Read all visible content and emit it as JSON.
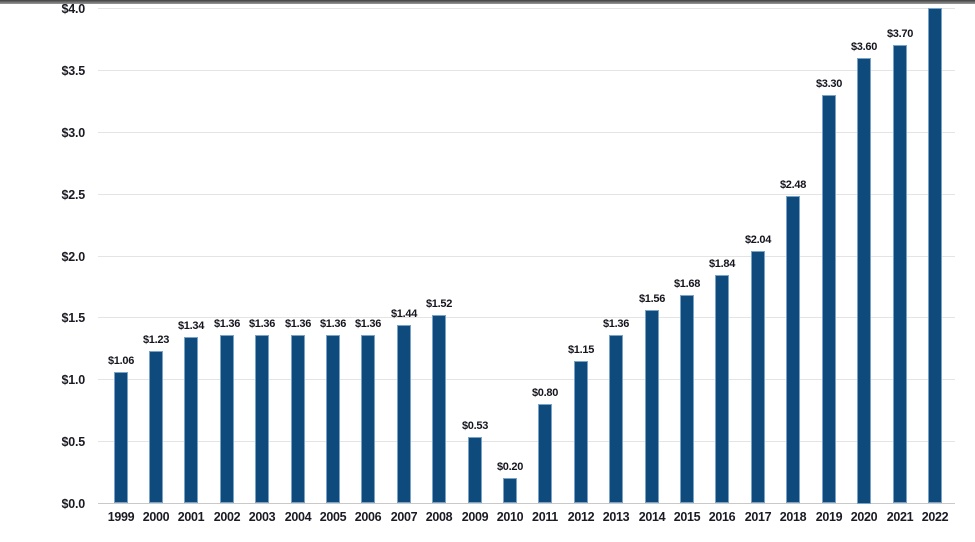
{
  "frame": {
    "top_strip_color_dark": "#3f3f3f",
    "top_strip_color_light": "#9a9a9a",
    "background_color": "#ffffff"
  },
  "chart_data": {
    "type": "bar",
    "title": "",
    "xlabel": "",
    "ylabel": "",
    "categories": [
      "1999",
      "2000",
      "2001",
      "2002",
      "2003",
      "2004",
      "2005",
      "2006",
      "2007",
      "2008",
      "2009",
      "2010",
      "2011",
      "2012",
      "2013",
      "2014",
      "2015",
      "2016",
      "2017",
      "2018",
      "2019",
      "2020",
      "2021",
      "2022"
    ],
    "values": [
      1.06,
      1.23,
      1.34,
      1.36,
      1.36,
      1.36,
      1.36,
      1.36,
      1.44,
      1.52,
      0.53,
      0.2,
      0.8,
      1.15,
      1.36,
      1.56,
      1.68,
      1.84,
      2.04,
      2.48,
      3.3,
      3.6,
      3.7,
      4.0
    ],
    "bar_labels": [
      "$1.06",
      "$1.23",
      "$1.34",
      "$1.36",
      "$1.36",
      "$1.36",
      "$1.36",
      "$1.36",
      "$1.44",
      "$1.52",
      "$0.53",
      "$0.20",
      "$0.80",
      "$1.15",
      "$1.36",
      "$1.56",
      "$1.68",
      "$1.84",
      "$2.04",
      "$2.48",
      "$3.30",
      "$3.60",
      "$3.70",
      ""
    ],
    "y_tick_labels": [
      "$4.0",
      "$3.5",
      "$3.0",
      "$2.5",
      "$2.0",
      "$1.5",
      "$1.0",
      "$0.5",
      "$0.0"
    ],
    "y_tick_values": [
      4.0,
      3.5,
      3.0,
      2.5,
      2.0,
      1.5,
      1.0,
      0.5,
      0.0
    ],
    "ylim": [
      0,
      4.0
    ],
    "grid": true,
    "legend": "none",
    "bar_color": "#0f4a7c",
    "bar_border_color": "#7aa3c6",
    "value_label_color": "#15151e",
    "tick_label_color": "#1b1b24",
    "gridline_color": "#e4e4e4",
    "axis_line_color": "#c9c9c9"
  }
}
